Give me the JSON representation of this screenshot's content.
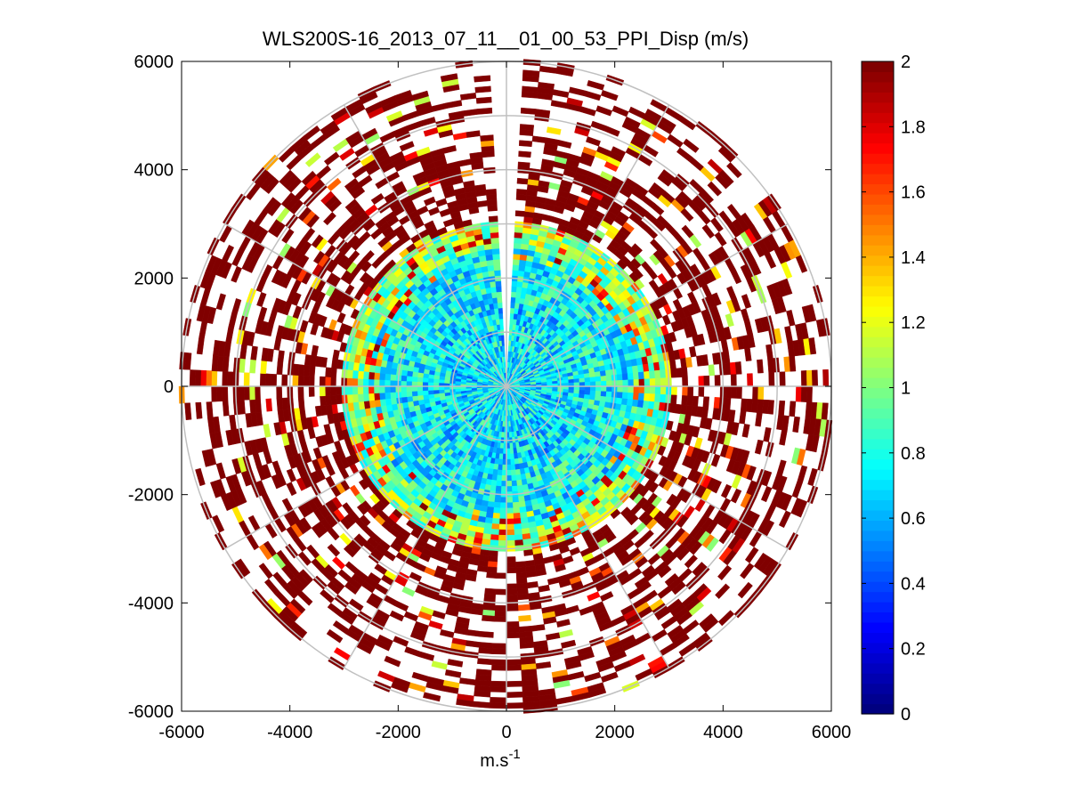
{
  "chart_data": {
    "type": "heatmap",
    "subtype": "polar-ppi-scan",
    "title": "WLS200S-16_2013_07_11__01_00_53_PPI_Disp (m/s)",
    "xlabel": "m.s",
    "xlabel_superscript": "-1",
    "ylabel": "",
    "xlim": [
      -6000,
      6000
    ],
    "ylim": [
      -6000,
      6000
    ],
    "x_ticks": [
      -6000,
      -4000,
      -2000,
      0,
      2000,
      4000,
      6000
    ],
    "y_ticks": [
      -6000,
      -4000,
      -2000,
      0,
      2000,
      4000,
      6000
    ],
    "x_tick_labels": [
      "-6000",
      "-4000",
      "-2000",
      "0",
      "2000",
      "4000",
      "6000"
    ],
    "y_tick_labels": [
      "-6000",
      "-4000",
      "-2000",
      "0",
      "2000",
      "4000",
      "6000"
    ],
    "range_rings": [
      1000,
      2000,
      3000,
      4000,
      5000,
      6000
    ],
    "radial_lines_deg": [
      0,
      30,
      60,
      90,
      120,
      150,
      180,
      210,
      240,
      270,
      300,
      330
    ],
    "max_range": 6000,
    "colorbar": {
      "colormap": "jet",
      "clim": [
        0,
        2
      ],
      "ticks": [
        0,
        0.2,
        0.4,
        0.6,
        0.8,
        1,
        1.2,
        1.4,
        1.6,
        1.8,
        2
      ],
      "tick_labels": [
        "0",
        "0.2",
        "0.4",
        "0.6",
        "0.8",
        "1",
        "1.2",
        "1.4",
        "1.6",
        "1.8",
        "2"
      ]
    },
    "field_description": {
      "no_data_sectors_azimuth_deg": [
        [
          -3,
          3
        ]
      ],
      "typical_value_by_range": [
        {
          "range_m": [
            0,
            1500
          ],
          "value": 0.7
        },
        {
          "range_m": [
            1500,
            2500
          ],
          "value": 0.75
        },
        {
          "range_m": [
            2500,
            3000
          ],
          "value": 1.0
        },
        {
          "range_m": [
            3000,
            6000
          ],
          "value": 2.0
        }
      ]
    }
  }
}
